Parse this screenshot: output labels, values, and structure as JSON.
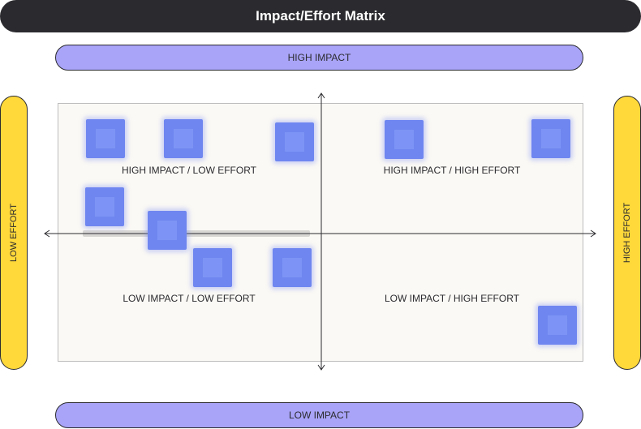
{
  "title": "Impact/Effort Matrix",
  "axes": {
    "top_label": "HIGH IMPACT",
    "bottom_label": "LOW IMPACT",
    "left_label": "LOW EFFORT",
    "right_label": "HIGH EFFORT"
  },
  "quadrants": {
    "top_left": "HIGH IMPACT / LOW EFFORT",
    "top_right": "HIGH IMPACT / HIGH EFFORT",
    "bottom_left": "LOW IMPACT / LOW EFFORT",
    "bottom_right": "LOW IMPACT / HIGH EFFORT"
  },
  "colors": {
    "header": "#2b2b2f",
    "impact_pill": "#a9a4f8",
    "effort_pill": "#ffd83a",
    "board": "#fbf9f5",
    "sticky": "#6f86f0"
  }
}
